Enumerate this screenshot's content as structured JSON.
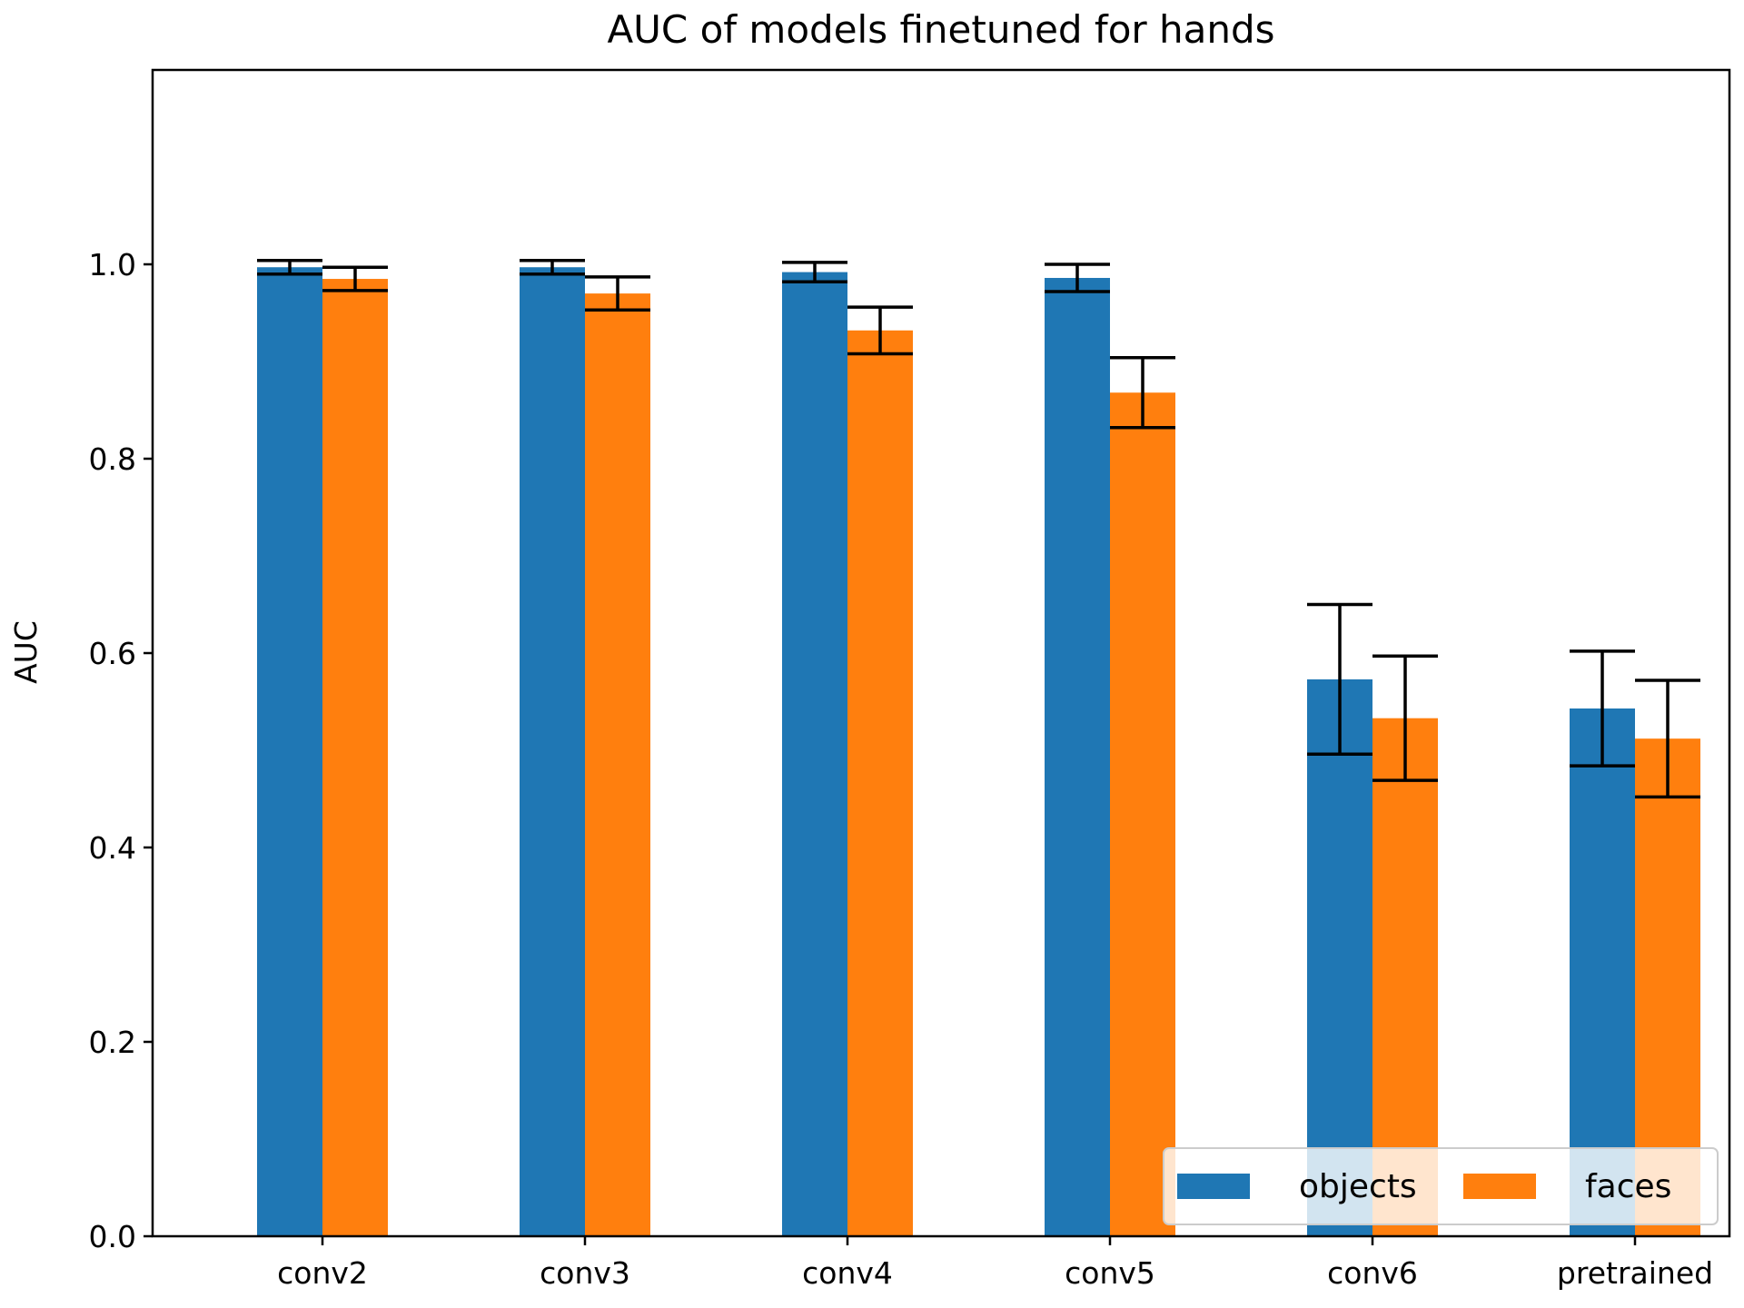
{
  "chart_data": {
    "type": "bar",
    "title": "AUC of models finetuned for hands",
    "xlabel": "",
    "ylabel": "AUC",
    "categories": [
      "conv2",
      "conv3",
      "conv4",
      "conv5",
      "conv6",
      "pretrained"
    ],
    "series": [
      {
        "name": "objects",
        "color": "#1f77b4",
        "values": [
          0.997,
          0.997,
          0.992,
          0.986,
          0.573,
          0.543
        ],
        "errors": [
          0.007,
          0.007,
          0.01,
          0.014,
          0.077,
          0.059
        ]
      },
      {
        "name": "faces",
        "color": "#ff7f0e",
        "values": [
          0.985,
          0.97,
          0.932,
          0.868,
          0.533,
          0.512
        ],
        "errors": [
          0.012,
          0.017,
          0.024,
          0.036,
          0.064,
          0.06
        ]
      }
    ],
    "ylim": [
      0,
      1.2
    ],
    "yticks": [
      0.0,
      0.2,
      0.4,
      0.6,
      0.8,
      1.0
    ],
    "ytick_labels": [
      "0.0",
      "0.2",
      "0.4",
      "0.6",
      "0.8",
      "1.0"
    ],
    "grid": false,
    "legend": {
      "placement": "lower-right",
      "columns": 2
    },
    "error_bar_color": "#000000"
  }
}
